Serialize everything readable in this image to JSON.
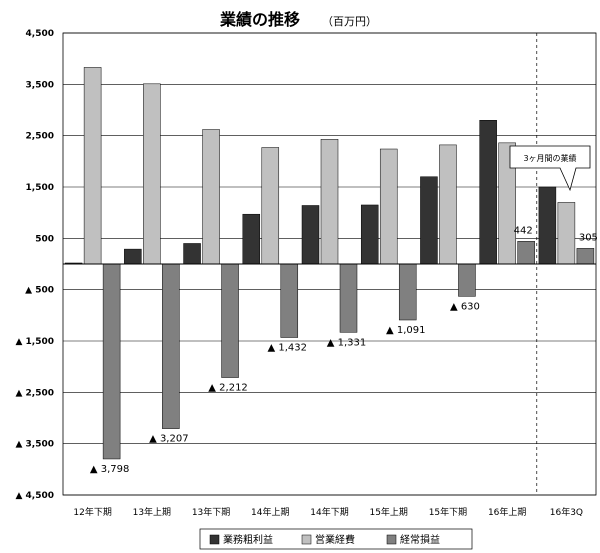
{
  "chart_data": {
    "type": "bar",
    "title": "業績の推移",
    "unit": "（百万円）",
    "categories": [
      "12年下期",
      "13年上期",
      "13年下期",
      "14年上期",
      "14年下期",
      "15年上期",
      "15年下期",
      "16年上期",
      "16年3Q"
    ],
    "series": [
      {
        "name": "業務粗利益",
        "color": "#333333",
        "values": [
          20,
          290,
          400,
          970,
          1140,
          1150,
          1700,
          2800,
          1500
        ]
      },
      {
        "name": "営業経費",
        "color": "#c0c0c0",
        "values": [
          3830,
          3510,
          2620,
          2270,
          2430,
          2240,
          2320,
          2360,
          1200
        ]
      },
      {
        "name": "経常損益",
        "color": "#808080",
        "values": [
          -3798,
          -3207,
          -2212,
          -1432,
          -1331,
          -1091,
          -630,
          442,
          305
        ]
      }
    ],
    "data_labels": [
      "▲ 3,798",
      "▲ 3,207",
      "▲ 2,212",
      "▲ 1,432",
      "▲ 1,331",
      "▲ 1,091",
      "▲ 630",
      "442",
      "305"
    ],
    "y_ticks": [
      4500,
      3500,
      2500,
      1500,
      500,
      -500,
      -1500,
      -2500,
      -3500,
      -4500
    ],
    "y_tick_labels": [
      "4,500",
      "3,500",
      "2,500",
      "1,500",
      "500",
      "▲ 500",
      "▲ 1,500",
      "▲ 2,500",
      "▲ 3,500",
      "▲ 4,500"
    ],
    "ylim": [
      -4500,
      4500
    ],
    "grid": true,
    "legend_position": "bottom",
    "annotation": "3ヶ月間の業績"
  }
}
